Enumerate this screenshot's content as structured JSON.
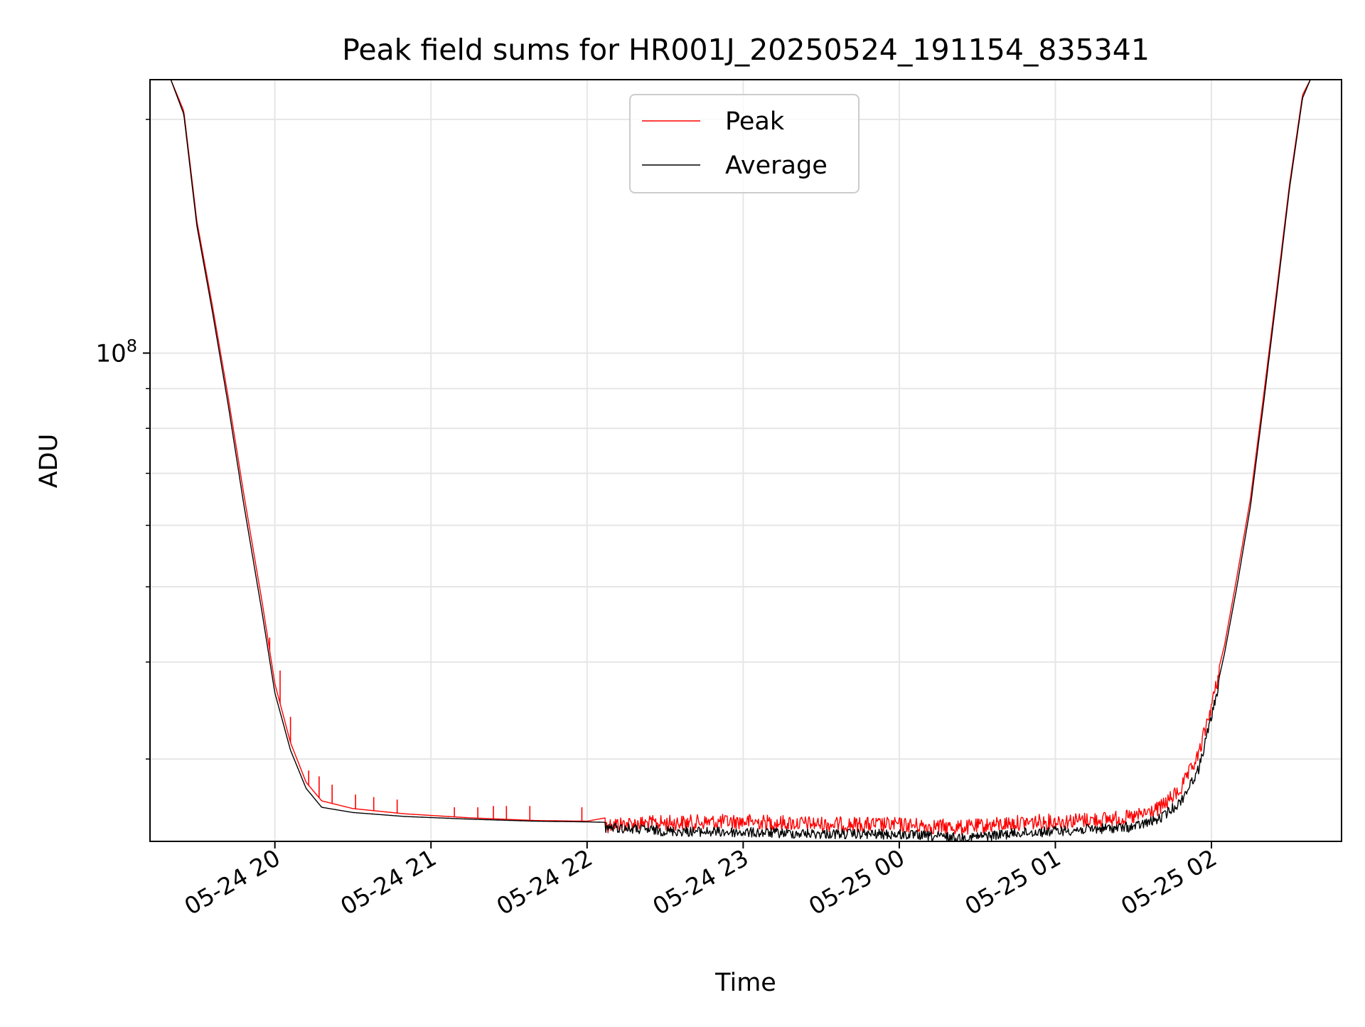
{
  "chart_data": {
    "type": "line",
    "title": "Peak field sums for HR001J_20250524_191154_835341",
    "xlabel": "Time",
    "ylabel": "ADU",
    "yscale": "log",
    "grid": true,
    "legend_position": "top-center",
    "x_ticks": [
      "05-24 20",
      "05-24 21",
      "05-24 22",
      "05-24 23",
      "05-25 00",
      "05-25 01",
      "05-25 02"
    ],
    "y_tick_labels": [
      {
        "value": 100000000,
        "label": "10^8"
      }
    ],
    "xlim": [
      "2025-05-24 19:12",
      "2025-05-25 02:50"
    ],
    "ylim": [
      23500000,
      225000000
    ],
    "series": [
      {
        "name": "Peak",
        "color": "#ff0000",
        "points": [
          [
            "2025-05-24 19:12",
            225000000
          ],
          [
            "2025-05-24 19:20",
            225000000
          ],
          [
            "2025-05-24 19:25",
            205000000
          ],
          [
            "2025-05-24 19:30",
            148000000
          ],
          [
            "2025-05-24 19:36",
            115000000
          ],
          [
            "2025-05-24 19:42",
            88000000
          ],
          [
            "2025-05-24 19:48",
            66000000
          ],
          [
            "2025-05-24 19:55",
            48000000
          ],
          [
            "2025-05-24 20:00",
            37500000
          ],
          [
            "2025-05-24 20:06",
            31500000
          ],
          [
            "2025-05-24 20:12",
            28000000
          ],
          [
            "2025-05-24 20:18",
            26500000
          ],
          [
            "2025-05-24 20:30",
            25900000
          ],
          [
            "2025-05-24 20:50",
            25500000
          ],
          [
            "2025-05-24 21:15",
            25200000
          ],
          [
            "2025-05-24 21:40",
            25000000
          ],
          [
            "2025-05-24 22:00",
            24950000
          ],
          [
            "2025-05-24 22:10",
            25300000
          ],
          [
            "2025-05-24 22:30",
            25400000
          ],
          [
            "2025-05-24 23:00",
            25500000
          ],
          [
            "2025-05-24 23:30",
            25300000
          ],
          [
            "2025-05-25 00:00",
            25250000
          ],
          [
            "2025-05-25 00:25",
            25050000
          ],
          [
            "2025-05-25 00:45",
            25400000
          ],
          [
            "2025-05-25 01:10",
            25600000
          ],
          [
            "2025-05-25 01:30",
            25800000
          ],
          [
            "2025-05-25 01:40",
            26500000
          ],
          [
            "2025-05-25 01:48",
            28000000
          ],
          [
            "2025-05-25 01:55",
            31000000
          ],
          [
            "2025-05-25 02:00",
            36000000
          ],
          [
            "2025-05-25 02:05",
            42000000
          ],
          [
            "2025-05-25 02:10",
            52000000
          ],
          [
            "2025-05-25 02:15",
            65000000
          ],
          [
            "2025-05-25 02:20",
            88000000
          ],
          [
            "2025-05-25 02:25",
            120000000
          ],
          [
            "2025-05-25 02:30",
            165000000
          ],
          [
            "2025-05-25 02:35",
            215000000
          ],
          [
            "2025-05-25 02:38",
            225000000
          ],
          [
            "2025-05-25 02:50",
            225000000
          ]
        ],
        "spikes": [
          [
            "2025-05-24 19:58",
            43000000
          ],
          [
            "2025-05-24 20:02",
            39000000
          ],
          [
            "2025-05-24 20:06",
            34000000
          ],
          [
            "2025-05-24 20:13",
            29000000
          ],
          [
            "2025-05-24 20:17",
            28500000
          ],
          [
            "2025-05-24 20:22",
            27800000
          ],
          [
            "2025-05-24 20:31",
            27000000
          ],
          [
            "2025-05-24 20:38",
            26800000
          ],
          [
            "2025-05-24 20:47",
            26600000
          ],
          [
            "2025-05-24 21:09",
            26000000
          ],
          [
            "2025-05-24 21:18",
            26000000
          ],
          [
            "2025-05-24 21:24",
            26100000
          ],
          [
            "2025-05-24 21:29",
            26100000
          ],
          [
            "2025-05-24 21:38",
            26100000
          ],
          [
            "2025-05-24 21:58",
            26000000
          ]
        ]
      },
      {
        "name": "Average",
        "color": "#000000",
        "points": [
          [
            "2025-05-24 19:12",
            225000000
          ],
          [
            "2025-05-24 19:20",
            225000000
          ],
          [
            "2025-05-24 19:25",
            203000000
          ],
          [
            "2025-05-24 19:30",
            146000000
          ],
          [
            "2025-05-24 19:36",
            113000000
          ],
          [
            "2025-05-24 19:42",
            86000000
          ],
          [
            "2025-05-24 19:48",
            64000000
          ],
          [
            "2025-05-24 19:55",
            46500000
          ],
          [
            "2025-05-24 20:00",
            36500000
          ],
          [
            "2025-05-24 20:06",
            30800000
          ],
          [
            "2025-05-24 20:12",
            27500000
          ],
          [
            "2025-05-24 20:18",
            26000000
          ],
          [
            "2025-05-24 20:30",
            25600000
          ],
          [
            "2025-05-24 20:50",
            25300000
          ],
          [
            "2025-05-24 21:15",
            25100000
          ],
          [
            "2025-05-24 21:40",
            24950000
          ],
          [
            "2025-05-24 22:00",
            24900000
          ],
          [
            "2025-05-24 22:10",
            24850000
          ],
          [
            "2025-05-24 22:30",
            24600000
          ],
          [
            "2025-05-24 23:00",
            24500000
          ],
          [
            "2025-05-24 23:30",
            24400000
          ],
          [
            "2025-05-25 00:00",
            24350000
          ],
          [
            "2025-05-25 00:25",
            24100000
          ],
          [
            "2025-05-25 00:45",
            24450000
          ],
          [
            "2025-05-25 01:10",
            24700000
          ],
          [
            "2025-05-25 01:30",
            24900000
          ],
          [
            "2025-05-25 01:40",
            25500000
          ],
          [
            "2025-05-25 01:48",
            26800000
          ],
          [
            "2025-05-25 01:55",
            29500000
          ],
          [
            "2025-05-25 02:00",
            34500000
          ],
          [
            "2025-05-25 02:05",
            41000000
          ],
          [
            "2025-05-25 02:10",
            50500000
          ],
          [
            "2025-05-25 02:15",
            63500000
          ],
          [
            "2025-05-25 02:20",
            86000000
          ],
          [
            "2025-05-25 02:25",
            118000000
          ],
          [
            "2025-05-25 02:30",
            163000000
          ],
          [
            "2025-05-25 02:35",
            213000000
          ],
          [
            "2025-05-25 02:38",
            225000000
          ],
          [
            "2025-05-25 02:50",
            225000000
          ]
        ]
      }
    ]
  }
}
